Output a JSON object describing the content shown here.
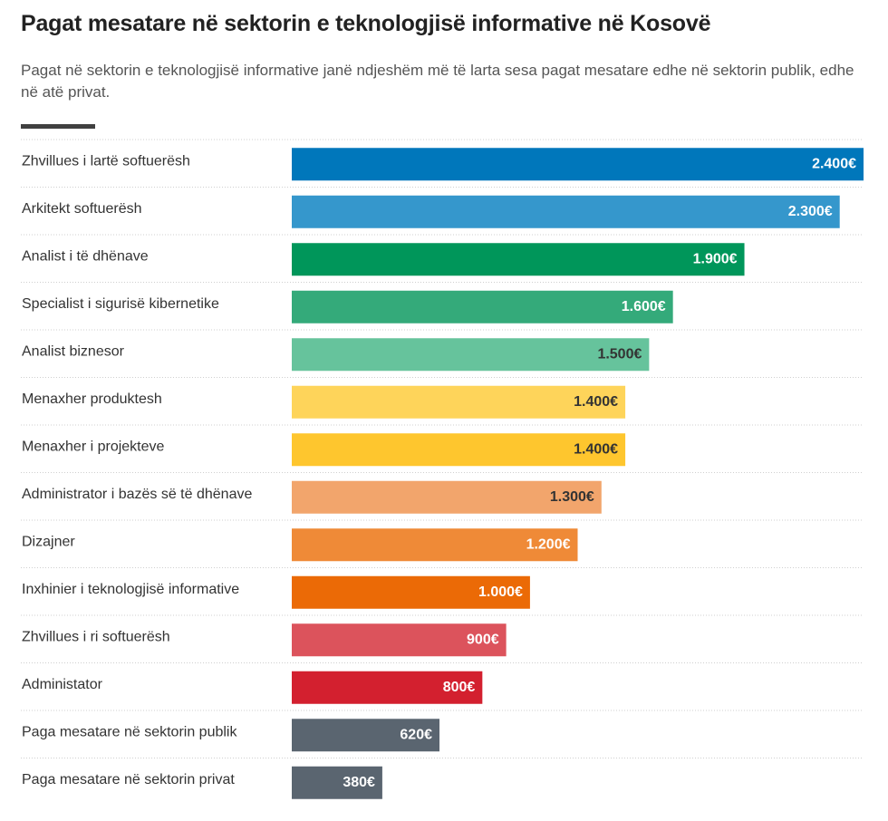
{
  "header": {
    "title": "Pagat mesatare në sektorin e teknologjisë informative në Kosovë",
    "subtitle": "Pagat në sektorin e teknologjisë informative janë ndjeshëm më të larta sesa pagat mesatare edhe në sektorin publik, edhe në atë privat."
  },
  "chart_data": {
    "type": "bar",
    "orientation": "horizontal",
    "title": "Pagat mesatare në sektorin e teknologjisë informative në Kosovë",
    "subtitle": "Pagat në sektorin e teknologjisë informative janë ndjeshëm më të larta sesa pagat mesatare edhe në sektorin publik, edhe në atë privat.",
    "xlim": [
      0,
      2400
    ],
    "grid": false,
    "categories": [
      "Zhvillues i lartë softuerësh",
      "Arkitekt softuerësh",
      "Analist i të dhënave",
      "Specialist i sigurisë kibernetike",
      "Analist biznesor",
      "Menaxher produktesh",
      "Menaxher i projekteve",
      "Administrator i bazës së të dhënave",
      "Dizajner",
      "Inxhinier i teknologjisë informative",
      "Zhvillues i ri softuerësh",
      "Administator",
      "Paga mesatare në sektorin publik",
      "Paga mesatare në sektorin privat"
    ],
    "values": [
      2400,
      2300,
      1900,
      1600,
      1500,
      1400,
      1400,
      1300,
      1200,
      1000,
      900,
      800,
      620,
      380
    ],
    "value_labels": [
      "2.400€",
      "2.300€",
      "1.900€",
      "1.600€",
      "1.500€",
      "1.400€",
      "1.400€",
      "1.300€",
      "1.200€",
      "1.000€",
      "900€",
      "800€",
      "620€",
      "380€"
    ],
    "colors": [
      "#0077bb",
      "#3597cc",
      "#00965a",
      "#34aa7a",
      "#66c39c",
      "#fed45a",
      "#fec62e",
      "#f2a56c",
      "#ef8a37",
      "#eb6a06",
      "#dc535c",
      "#d3202f",
      "#5a6570",
      "#5a6570"
    ],
    "label_colors": [
      "#ffffff",
      "#ffffff",
      "#ffffff",
      "#ffffff",
      "#333333",
      "#333333",
      "#333333",
      "#333333",
      "#ffffff",
      "#ffffff",
      "#ffffff",
      "#ffffff",
      "#ffffff",
      "#ffffff"
    ]
  }
}
